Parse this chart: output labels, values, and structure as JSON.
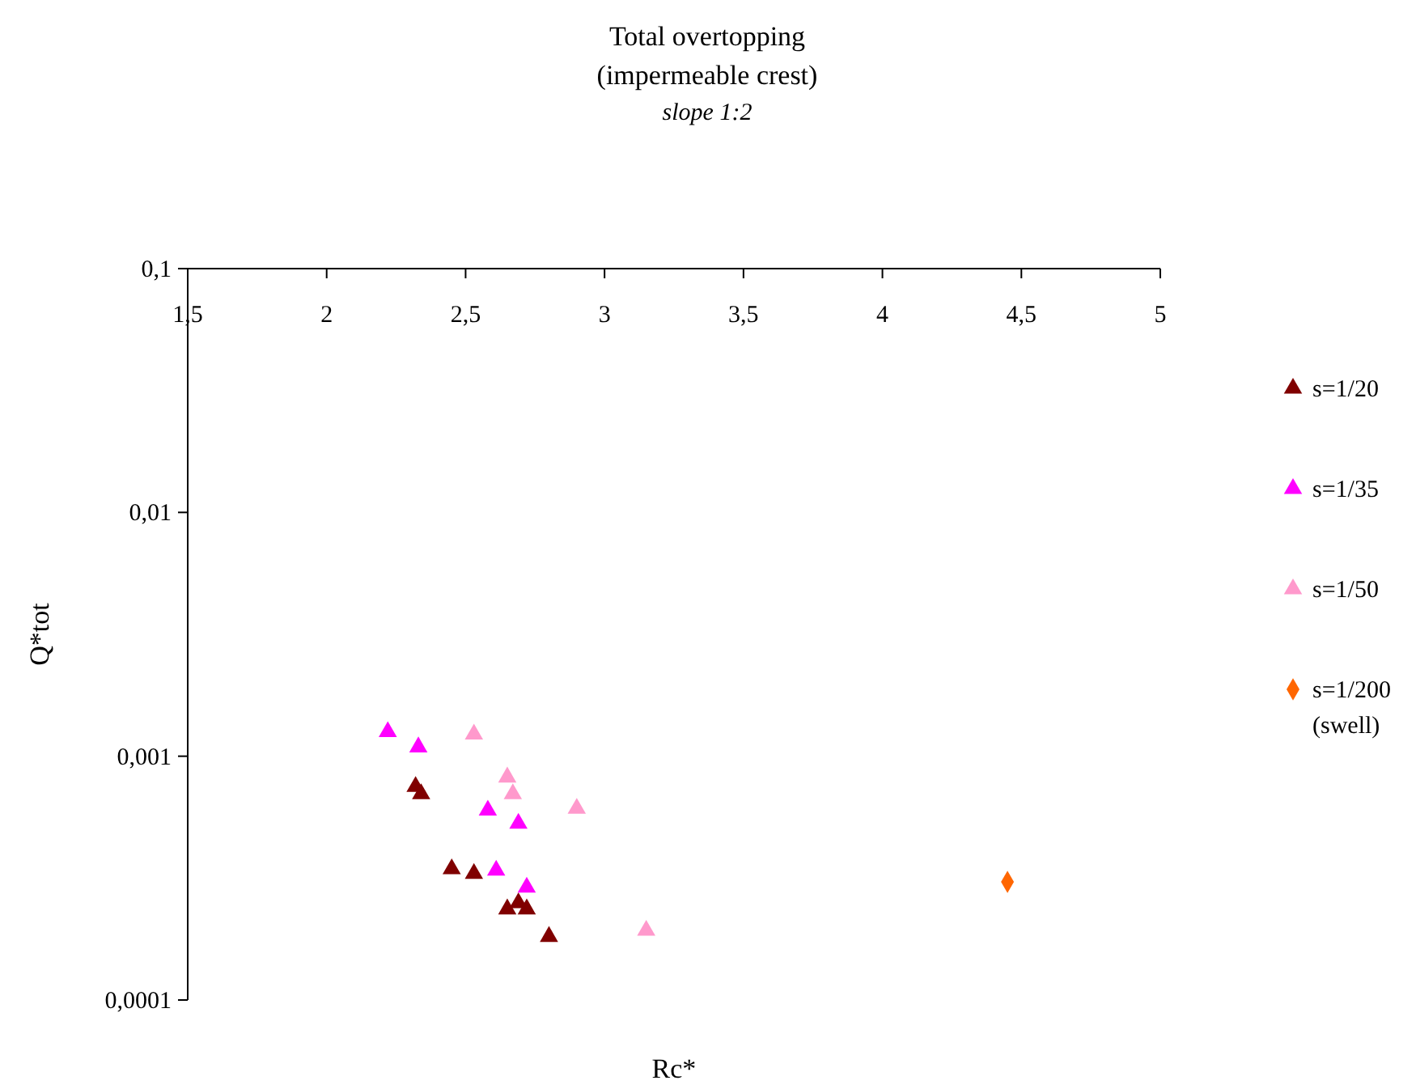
{
  "chart_data": {
    "type": "scatter",
    "title": "Total overtopping (impermeable crest)",
    "subtitle": "slope 1:2",
    "xlabel": "Rc*",
    "ylabel": "Q*tot",
    "log": "y",
    "legend": "right",
    "grid": false,
    "xlim": [
      1.5,
      5
    ],
    "xticks": [
      {
        "value": 1.5,
        "label": "1,5"
      },
      2,
      {
        "value": 2.5,
        "label": "2,5"
      },
      3,
      {
        "value": 3.5,
        "label": "3,5"
      },
      4,
      {
        "value": 4.5,
        "label": "4,5"
      },
      5
    ],
    "ylim": [
      0.0001,
      0.1
    ],
    "yticks": [
      {
        "value": 0.0001,
        "label": "0,0001"
      },
      {
        "value": 0.001,
        "label": "0,001"
      },
      {
        "value": 0.01,
        "label": "0,01"
      },
      {
        "value": 0.1,
        "label": "0,1"
      }
    ],
    "series": [
      {
        "name": "s=1/20",
        "color": "#800000",
        "marker": "triangle",
        "x": [
          2.32,
          2.34,
          2.45,
          2.53,
          2.65,
          2.69,
          2.72,
          2.8
        ],
        "values": [
          0.00075,
          0.0007,
          0.000345,
          0.00033,
          0.000236,
          0.00025,
          0.000236,
          0.000182
        ]
      },
      {
        "name": "s=1/35",
        "color": "#ff00ff",
        "marker": "triangle",
        "x": [
          2.22,
          2.33,
          2.58,
          2.69,
          2.61,
          2.72
        ],
        "values": [
          0.00126,
          0.00109,
          0.0006,
          0.00053,
          0.00034,
          0.00029
        ]
      },
      {
        "name": "s=1/50",
        "color": "#ff99cc",
        "marker": "triangle",
        "x": [
          2.53,
          2.65,
          2.67,
          2.9,
          3.15
        ],
        "values": [
          0.00123,
          0.00082,
          0.0007,
          0.00061,
          0.000193
        ]
      },
      {
        "name": "s=1/200 (swell)",
        "color": "#ff6600",
        "marker": "diamond",
        "x": [
          4.45
        ],
        "values": [
          0.000305
        ]
      }
    ]
  }
}
